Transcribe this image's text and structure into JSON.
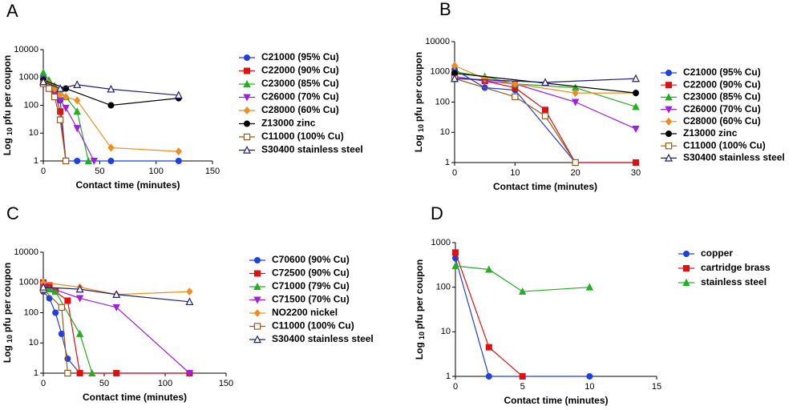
{
  "chart_data": [
    {
      "type": "line",
      "panel": "A",
      "log_y": true,
      "xlabel": "Contact time (minutes)",
      "ylabel": {
        "text": "Log",
        "sub": "10",
        "rest": "pfu per coupon"
      },
      "xlim": [
        0,
        150
      ],
      "xticks": [
        0,
        50,
        100,
        150
      ],
      "ylim": [
        1,
        10000
      ],
      "yticks": [
        1,
        10,
        100,
        1000,
        10000
      ],
      "series": [
        {
          "name": "C21000 (95% Cu)",
          "color": "#1f3fe0",
          "marker": "circle",
          "x": [
            0,
            5,
            10,
            15,
            20,
            30,
            60,
            120
          ],
          "values": [
            1000,
            500,
            300,
            150,
            1,
            1,
            1,
            1
          ]
        },
        {
          "name": "C22000 (90% Cu)",
          "color": "#e01010",
          "marker": "square",
          "x": [
            0,
            5,
            10,
            15,
            20
          ],
          "values": [
            700,
            500,
            300,
            60,
            1
          ]
        },
        {
          "name": "C23000 (85% Cu)",
          "color": "#20b020",
          "marker": "triangle",
          "x": [
            0,
            5,
            10,
            15,
            20,
            30,
            40
          ],
          "values": [
            1500,
            800,
            500,
            300,
            200,
            60,
            1
          ]
        },
        {
          "name": "C26000 (70% Cu)",
          "color": "#a020e0",
          "marker": "invtriangle",
          "x": [
            0,
            5,
            10,
            15,
            20,
            30,
            45
          ],
          "values": [
            800,
            500,
            300,
            150,
            80,
            15,
            1
          ]
        },
        {
          "name": "C28000 (60% Cu)",
          "color": "#f08c1e",
          "marker": "diamond",
          "x": [
            0,
            5,
            10,
            15,
            20,
            30,
            60,
            120
          ],
          "values": [
            700,
            600,
            400,
            250,
            200,
            150,
            3,
            2.2
          ]
        },
        {
          "name": "Z13000 zinc",
          "color": "#000000",
          "marker": "circle",
          "x": [
            0,
            20,
            60,
            120
          ],
          "values": [
            800,
            400,
            100,
            180
          ]
        },
        {
          "name": "C11000 (100% Cu)",
          "color": "#9a5a1a",
          "marker": "opensquare",
          "x": [
            0,
            5,
            10,
            15,
            20
          ],
          "values": [
            600,
            400,
            200,
            30,
            1
          ]
        },
        {
          "name": "S30400 stainless steel",
          "color": "#20207a",
          "marker": "opentriangle",
          "x": [
            0,
            15,
            30,
            60,
            120
          ],
          "values": [
            700,
            400,
            550,
            380,
            230
          ]
        }
      ]
    },
    {
      "type": "line",
      "panel": "B",
      "log_y": true,
      "xlabel": "Contact time (minutes)",
      "ylabel": {
        "text": "Log",
        "sub": "10",
        "rest": "pfu per coupon"
      },
      "xlim": [
        0,
        30
      ],
      "xticks": [
        0,
        10,
        20,
        30
      ],
      "ylim": [
        1,
        10000
      ],
      "yticks": [
        1,
        10,
        100,
        1000,
        10000
      ],
      "series": [
        {
          "name": "C21000 (95% Cu)",
          "color": "#1f3fe0",
          "marker": "circle",
          "x": [
            0,
            5,
            10,
            20,
            30
          ],
          "values": [
            1200,
            300,
            250,
            1,
            1
          ]
        },
        {
          "name": "C22000 (90% Cu)",
          "color": "#e01010",
          "marker": "square",
          "x": [
            0,
            5,
            10,
            15,
            20,
            30
          ],
          "values": [
            700,
            500,
            300,
            55,
            1,
            1
          ]
        },
        {
          "name": "C23000 (85% Cu)",
          "color": "#20b020",
          "marker": "triangle",
          "x": [
            0,
            5,
            10,
            20,
            30
          ],
          "values": [
            1000,
            700,
            400,
            300,
            70
          ]
        },
        {
          "name": "C26000 (70% Cu)",
          "color": "#a020e0",
          "marker": "invtriangle",
          "x": [
            0,
            5,
            10,
            20,
            30
          ],
          "values": [
            700,
            500,
            400,
            100,
            13
          ]
        },
        {
          "name": "C28000 (60% Cu)",
          "color": "#f08c1e",
          "marker": "diamond",
          "x": [
            0,
            5,
            10,
            20,
            30
          ],
          "values": [
            1600,
            600,
            400,
            200,
            200
          ]
        },
        {
          "name": "Z13000 zinc",
          "color": "#000000",
          "marker": "circle",
          "x": [
            0,
            30
          ],
          "values": [
            900,
            200
          ]
        },
        {
          "name": "C11000 (100% Cu)",
          "color": "#9a5a1a",
          "marker": "opensquare",
          "x": [
            0,
            10,
            15,
            20
          ],
          "values": [
            600,
            150,
            35,
            1
          ]
        },
        {
          "name": "S30400 stainless steel",
          "color": "#20207a",
          "marker": "opentriangle",
          "x": [
            0,
            15,
            30
          ],
          "values": [
            600,
            450,
            600
          ]
        }
      ]
    },
    {
      "type": "line",
      "panel": "C",
      "log_y": true,
      "xlabel": "Contact time (minutes)",
      "ylabel": {
        "text": "Log",
        "sub": "10",
        "rest": "pfu per coupon"
      },
      "xlim": [
        0,
        150
      ],
      "xticks": [
        0,
        50,
        100,
        150
      ],
      "ylim": [
        1,
        10000
      ],
      "yticks": [
        1,
        10,
        100,
        1000,
        10000
      ],
      "series": [
        {
          "name": "C70600 (90% Cu)",
          "color": "#1f3fe0",
          "marker": "circle",
          "x": [
            0,
            5,
            10,
            15,
            20,
            30,
            60,
            120
          ],
          "values": [
            500,
            300,
            100,
            20,
            3,
            1,
            1,
            1
          ]
        },
        {
          "name": "C72500 (90% Cu)",
          "color": "#e01010",
          "marker": "square",
          "x": [
            0,
            5,
            10,
            20,
            30,
            60,
            120
          ],
          "values": [
            1000,
            800,
            500,
            250,
            1,
            1,
            1
          ]
        },
        {
          "name": "C71000 (79% Cu)",
          "color": "#20b020",
          "marker": "triangle",
          "x": [
            0,
            5,
            10,
            30,
            40
          ],
          "values": [
            700,
            600,
            500,
            20,
            1
          ]
        },
        {
          "name": "C71500 (70% Cu)",
          "color": "#a020e0",
          "marker": "invtriangle",
          "x": [
            0,
            30,
            60,
            120
          ],
          "values": [
            800,
            300,
            150,
            1
          ]
        },
        {
          "name": "NO2200 nickel",
          "color": "#f08c1e",
          "marker": "diamond",
          "x": [
            0,
            30,
            60,
            120
          ],
          "values": [
            1000,
            700,
            400,
            500
          ]
        },
        {
          "name": "C11000 (100% Cu)",
          "color": "#9a5a1a",
          "marker": "opensquare",
          "x": [
            0,
            15,
            20
          ],
          "values": [
            600,
            150,
            1
          ]
        },
        {
          "name": "S30400 stainless steel",
          "color": "#20207a",
          "marker": "opentriangle",
          "x": [
            0,
            30,
            60,
            120
          ],
          "values": [
            700,
            600,
            400,
            230
          ]
        }
      ]
    },
    {
      "type": "line",
      "panel": "D",
      "log_y": true,
      "xlabel": "Contact time (minutes)",
      "ylabel": {
        "text": "Log",
        "sub": "10",
        "rest": "pfu per coupon"
      },
      "xlim": [
        0,
        15
      ],
      "xticks": [
        0,
        5,
        10,
        15
      ],
      "ylim": [
        1,
        1000
      ],
      "yticks": [
        1,
        10,
        100,
        1000
      ],
      "series": [
        {
          "name": "copper",
          "color": "#1f3fe0",
          "marker": "circle",
          "x": [
            0,
            2.5,
            5,
            10
          ],
          "values": [
            450,
            1,
            1,
            1
          ]
        },
        {
          "name": "cartridge brass",
          "color": "#e01010",
          "marker": "square",
          "x": [
            0,
            2.5,
            5
          ],
          "values": [
            600,
            4.5,
            1
          ]
        },
        {
          "name": "stainless steel",
          "color": "#20b020",
          "marker": "triangle",
          "x": [
            0,
            2.5,
            5,
            10
          ],
          "values": [
            300,
            250,
            80,
            100
          ]
        }
      ]
    }
  ]
}
